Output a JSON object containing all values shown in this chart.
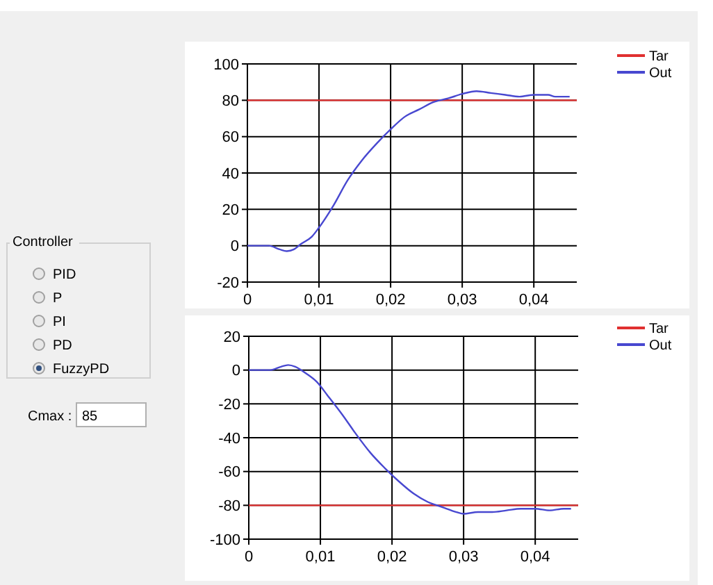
{
  "chart_data": [
    {
      "type": "line",
      "grid": true,
      "legend": "top right",
      "xlim": [
        0,
        0.046
      ],
      "ylim": [
        -20,
        100
      ],
      "xticks": [
        0,
        {
          "value": 0.01,
          "label": "0,01"
        },
        {
          "value": 0.02,
          "label": "0,02"
        },
        {
          "value": 0.03,
          "label": "0,03"
        },
        {
          "value": 0.04,
          "label": "0,04"
        }
      ],
      "yticks": [
        -20,
        0,
        20,
        40,
        60,
        80,
        100
      ],
      "series": [
        {
          "name": "Tar",
          "color": "#e03030",
          "x": [
            0,
            0.046
          ],
          "values": [
            80,
            80
          ]
        },
        {
          "name": "Out",
          "color": "#4848d0",
          "x": [
            0,
            0.003,
            0.0045,
            0.0055,
            0.0065,
            0.0075,
            0.009,
            0.01,
            0.012,
            0.014,
            0.016,
            0.018,
            0.02,
            0.022,
            0.024,
            0.026,
            0.028,
            0.03,
            0.032,
            0.034,
            0.036,
            0.038,
            0.04,
            0.042,
            0.043,
            0.045
          ],
          "values": [
            0,
            0,
            -2,
            -3,
            -2,
            1,
            5,
            10,
            22,
            36,
            47,
            56,
            64,
            71,
            75,
            79,
            81,
            83.5,
            85,
            84,
            83,
            82,
            83,
            83,
            82,
            82
          ]
        }
      ]
    },
    {
      "type": "line",
      "grid": true,
      "legend": "top right",
      "xlim": [
        0,
        0.046
      ],
      "ylim": [
        -100,
        20
      ],
      "xticks": [
        0,
        {
          "value": 0.01,
          "label": "0,01"
        },
        {
          "value": 0.02,
          "label": "0,02"
        },
        {
          "value": 0.03,
          "label": "0,03"
        },
        {
          "value": 0.04,
          "label": "0,04"
        }
      ],
      "yticks": [
        -100,
        -80,
        -60,
        -40,
        -20,
        0,
        20
      ],
      "series": [
        {
          "name": "Tar",
          "color": "#e03030",
          "x": [
            0,
            0.046
          ],
          "values": [
            -80,
            -80
          ]
        },
        {
          "name": "Out",
          "color": "#4848d0",
          "x": [
            0,
            0.003,
            0.0045,
            0.0055,
            0.0065,
            0.008,
            0.0095,
            0.011,
            0.013,
            0.015,
            0.017,
            0.019,
            0.021,
            0.023,
            0.025,
            0.027,
            0.029,
            0.03,
            0.032,
            0.034,
            0.036,
            0.038,
            0.04,
            0.042,
            0.044,
            0.045
          ],
          "values": [
            0,
            0,
            2,
            3,
            2,
            -2,
            -7,
            -15,
            -26,
            -38,
            -49,
            -58,
            -66,
            -73,
            -78,
            -81,
            -84,
            -85,
            -84,
            -84,
            -83,
            -82,
            -82,
            -83,
            -82,
            -82
          ]
        }
      ]
    },
    {
      "type": "other",
      "title": "Controller",
      "annotations": [
        "PID",
        "P",
        "PI",
        "PD",
        "FuzzyPD",
        "Cmax :",
        "85"
      ]
    }
  ]
}
